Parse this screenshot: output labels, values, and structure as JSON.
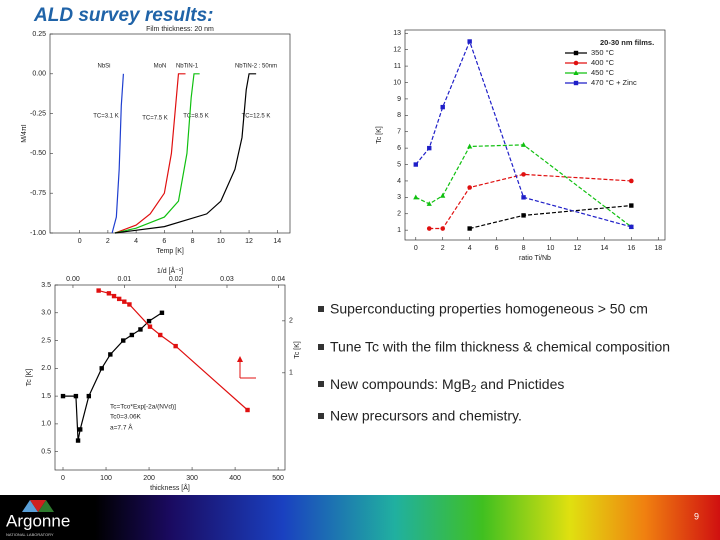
{
  "title": "ALD survey results:",
  "bullets": [
    {
      "text": "Superconducting properties homogeneous > 50 cm"
    },
    {
      "text": "Tune Tc with the film thickness & chemical composition"
    },
    {
      "text": "New compounds: MgB",
      "sub": "2",
      "after": " and Pnictides"
    },
    {
      "text": "New precursors and chemistry."
    }
  ],
  "logo": {
    "name": "Argonne",
    "sub": "NATIONAL LABORATORY"
  },
  "page_number": "9",
  "chart_data": [
    {
      "type": "line",
      "title": "Film thickness: 20 nm",
      "xlabel": "Temp [K]",
      "ylabel": "M/4πI",
      "xlim": [
        -2.1,
        14.9
      ],
      "ylim": [
        -1,
        0.25
      ],
      "xticks": [
        0,
        2,
        4,
        6,
        8,
        10,
        12,
        14
      ],
      "yticks": [
        0.25,
        {
          "value": 0,
          "label": "0.00"
        },
        {
          "value": -0.25,
          "label": "-0.25"
        },
        {
          "value": -0.5,
          "label": "-0.50"
        },
        {
          "value": -0.75,
          "label": "-0.75"
        },
        {
          "value": -1,
          "label": "-1.00"
        }
      ],
      "annotations": [
        "NbSi",
        "MoN",
        "NbTiN-1",
        "NbTiN-2 : 50nm",
        "TC=3.1 K",
        "TC=7.5 K",
        "TC=8.5 K",
        "TC=12.5 K"
      ],
      "series": [
        {
          "color": "#1f3fd0",
          "x": [
            2.3,
            2.6,
            2.8,
            2.95,
            3.1
          ],
          "values": [
            -1,
            -0.9,
            -0.6,
            -0.2,
            0
          ]
        },
        {
          "color": "#e01010",
          "x": [
            2.5,
            4,
            5,
            6,
            6.5,
            6.8,
            7,
            7.5
          ],
          "values": [
            -1,
            -0.95,
            -0.88,
            -0.75,
            -0.5,
            -0.2,
            0,
            0
          ]
        },
        {
          "color": "#10c010",
          "x": [
            2.5,
            4,
            6,
            7,
            7.6,
            7.9,
            8.1,
            8.5
          ],
          "values": [
            -1,
            -0.97,
            -0.9,
            -0.8,
            -0.5,
            -0.15,
            0,
            0
          ]
        },
        {
          "color": "#000000",
          "x": [
            2.5,
            6,
            9,
            10,
            11,
            11.5,
            11.8,
            12,
            12.5
          ],
          "values": [
            -1,
            -0.96,
            -0.88,
            -0.8,
            -0.6,
            -0.4,
            -0.1,
            0,
            0
          ]
        }
      ]
    },
    {
      "type": "line",
      "xlabel": "ratio Ti/Nb",
      "ylabel": "Tc [K]",
      "xlim": [
        -0.8,
        18.5
      ],
      "ylim": [
        0.4,
        13.2
      ],
      "xticks": [
        0,
        2,
        4,
        6,
        8,
        10,
        12,
        14,
        16,
        18
      ],
      "yticks": [
        1,
        2,
        3,
        4,
        5,
        6,
        7,
        8,
        9,
        10,
        11,
        12,
        13
      ],
      "legend": "upper right",
      "legend_title": "20-30 nm films.",
      "series": [
        {
          "name": "350 °C",
          "color": "#000000",
          "marker": "square",
          "x": [
            4,
            8,
            16
          ],
          "values": [
            1.1,
            1.9,
            2.5
          ]
        },
        {
          "name": "400 °C",
          "color": "#e01010",
          "marker": "circle",
          "x": [
            1,
            2,
            4,
            8,
            16
          ],
          "values": [
            1.1,
            1.1,
            3.6,
            4.4,
            4.0
          ]
        },
        {
          "name": "450 °C",
          "color": "#10c010",
          "marker": "triangle",
          "x": [
            0,
            1,
            2,
            4,
            8,
            16
          ],
          "values": [
            3.0,
            2.6,
            3.1,
            6.1,
            6.2,
            1.2
          ]
        },
        {
          "name": "470 °C + Zinc",
          "color": "#1f1fc8",
          "marker": "square",
          "x": [
            0,
            1,
            2,
            4,
            8,
            16
          ],
          "values": [
            5.0,
            6.0,
            8.5,
            12.5,
            3.0,
            1.2
          ]
        }
      ]
    },
    {
      "type": "line",
      "xlabel": "thickness [Å]",
      "ylabel": "Tc [K]",
      "x2label": "1/d [Å⁻¹]",
      "y2label": "Tc [K]",
      "xlim": [
        -18.6,
        516
      ],
      "ylim": [
        0.17,
        3.5
      ],
      "x2lim": [
        -0.0035,
        0.0413
      ],
      "y2lim": [
        -0.87,
        2.69
      ],
      "xticks": [
        0,
        100,
        200,
        300,
        400,
        500
      ],
      "yticks": [
        0.5,
        {
          "value": 1,
          "label": "1.0"
        },
        1.5,
        {
          "value": 2,
          "label": "2.0"
        },
        2.5,
        {
          "value": 3,
          "label": "3.0"
        },
        3.5
      ],
      "x2ticks": [
        {
          "value": 0,
          "label": "0.00"
        },
        0.01,
        0.02,
        0.03,
        0.04
      ],
      "y2ticks": [
        1,
        2
      ],
      "annotations": [
        "Tc=Tco*Exp[-2a/(NVd)]",
        "Tc0=3.06K",
        "a=7.7 Å"
      ],
      "series": [
        {
          "color": "#000000",
          "marker": "square",
          "x": [
            0,
            30,
            35,
            40,
            60,
            90,
            110,
            140,
            160,
            180,
            200,
            230
          ],
          "values": [
            1.5,
            1.5,
            0.7,
            0.9,
            1.5,
            2.0,
            2.25,
            2.5,
            2.6,
            2.7,
            2.85,
            3.0
          ]
        },
        {
          "color": "#e01010",
          "marker": "square",
          "axis": "x2",
          "x": [
            0.005,
            0.007,
            0.008,
            0.009,
            0.01,
            0.011,
            0.015,
            0.017,
            0.02,
            0.034
          ],
          "values": [
            3.4,
            3.35,
            3.3,
            3.25,
            3.2,
            3.15,
            2.75,
            2.6,
            2.4,
            1.25
          ]
        }
      ]
    }
  ]
}
